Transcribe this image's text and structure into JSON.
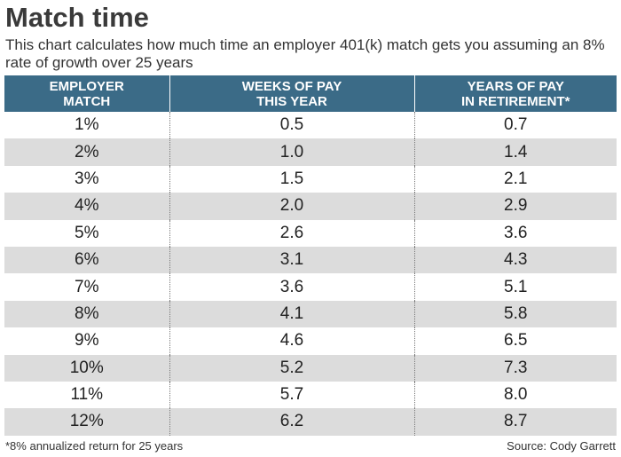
{
  "title": "Match time",
  "subtitle": "This chart calculates how much time an employer 401(k) match gets you assuming an 8% rate of growth over 25 years",
  "footnote": "*8% annualized return for 25 years",
  "source": "Source: Cody Garrett",
  "colors": {
    "header_background": "#3b6b87",
    "stripe_row": "#dcdcdc"
  },
  "chart_data": {
    "type": "table",
    "columns": [
      [
        "EMPLOYER",
        "MATCH"
      ],
      [
        "WEEKS OF PAY",
        "THIS YEAR"
      ],
      [
        "YEARS OF PAY",
        "IN RETIREMENT*"
      ]
    ],
    "rows": [
      [
        "1%",
        "0.5",
        "0.7"
      ],
      [
        "2%",
        "1.0",
        "1.4"
      ],
      [
        "3%",
        "1.5",
        "2.1"
      ],
      [
        "4%",
        "2.0",
        "2.9"
      ],
      [
        "5%",
        "2.6",
        "3.6"
      ],
      [
        "6%",
        "3.1",
        "4.3"
      ],
      [
        "7%",
        "3.6",
        "5.1"
      ],
      [
        "8%",
        "4.1",
        "5.8"
      ],
      [
        "9%",
        "4.6",
        "6.5"
      ],
      [
        "10%",
        "5.2",
        "7.3"
      ],
      [
        "11%",
        "5.7",
        "8.0"
      ],
      [
        "12%",
        "6.2",
        "8.7"
      ]
    ]
  }
}
